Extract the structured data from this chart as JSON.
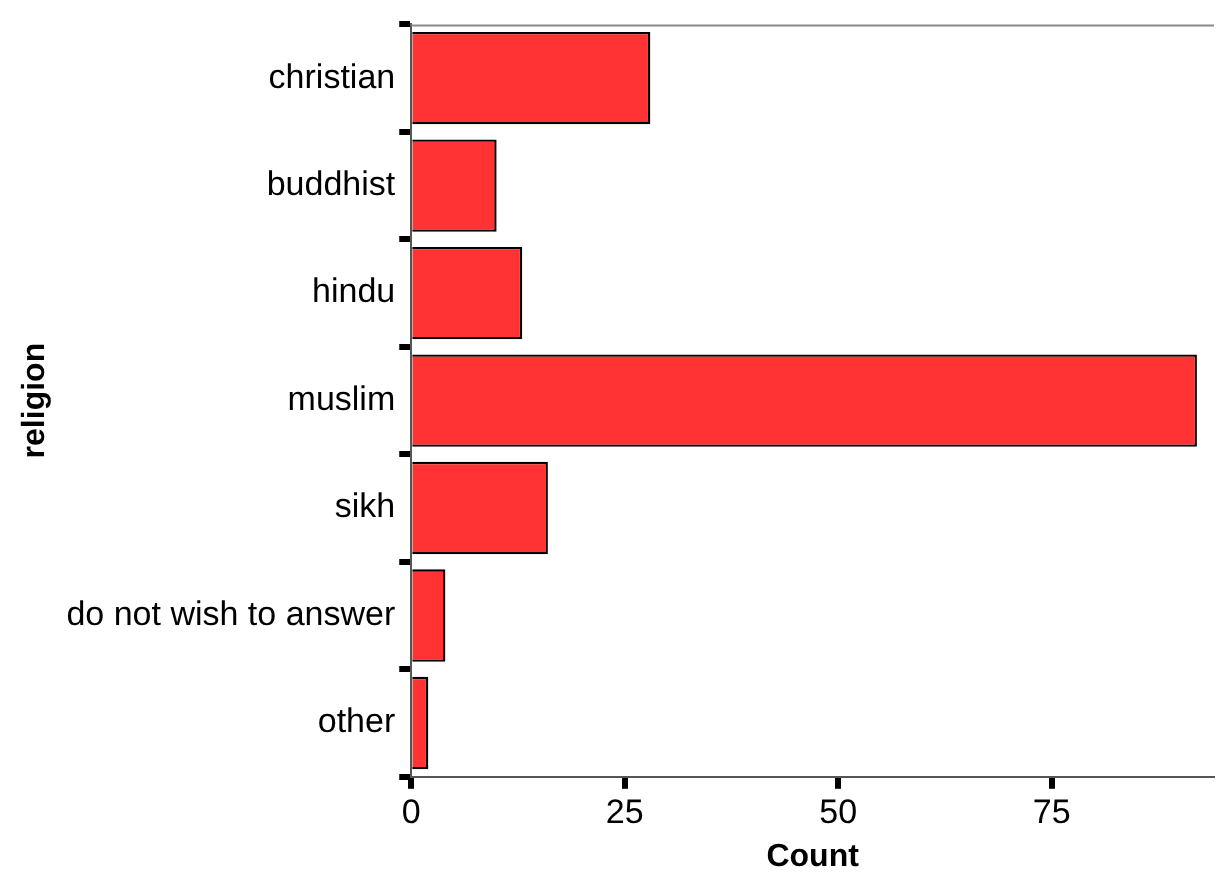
{
  "chart_data": {
    "type": "bar",
    "orientation": "horizontal",
    "xlabel": "Count",
    "ylabel": "religion",
    "categories": [
      "christian",
      "buddhist",
      "hindu",
      "muslim",
      "sikh",
      "do not wish to answer",
      "other"
    ],
    "values": [
      28,
      10,
      13,
      92,
      16,
      4,
      2
    ],
    "color": "#ff3333",
    "xlim": [
      0,
      94
    ],
    "xticks": [
      0,
      25,
      50,
      75
    ],
    "grid": false,
    "legend": false
  }
}
